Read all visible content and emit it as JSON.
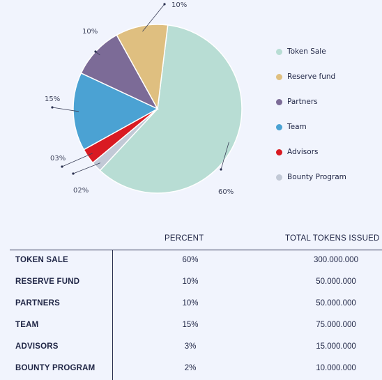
{
  "chart_data": {
    "type": "pie",
    "slices": [
      {
        "name": "Token Sale",
        "value": 60,
        "label": "60%",
        "color": "#b8ddd4"
      },
      {
        "name": "Bounty Program",
        "value": 2,
        "label": "02%",
        "color": "#c2c9d6"
      },
      {
        "name": "Advisors",
        "value": 3,
        "label": "03%",
        "color": "#d91a22"
      },
      {
        "name": "Team",
        "value": 15,
        "label": "15%",
        "color": "#4ba2d3"
      },
      {
        "name": "Partners",
        "value": 10,
        "label": "10%",
        "color": "#7c6b97"
      },
      {
        "name": "Reserve fund",
        "value": 10,
        "label": "10%",
        "color": "#dfbf80"
      }
    ],
    "legend": [
      "Token Sale",
      "Reserve fund",
      "Partners",
      "Team",
      "Advisors",
      "Bounty Program"
    ],
    "legend_position": "right"
  },
  "table": {
    "headers": {
      "percent": "PERCENT",
      "total": "TOTAL TOKENS ISSUED"
    },
    "rows": [
      {
        "name": "TOKEN SALE",
        "percent": "60%",
        "total": "300.000.000"
      },
      {
        "name": "RESERVE FUND",
        "percent": "10%",
        "total": "50.000.000"
      },
      {
        "name": "PARTNERS",
        "percent": "10%",
        "total": "50.000.000"
      },
      {
        "name": "TEAM",
        "percent": "15%",
        "total": "75.000.000"
      },
      {
        "name": "ADVISORS",
        "percent": "3%",
        "total": "15.000.000"
      },
      {
        "name": "BOUNTY PROGRAM",
        "percent": "2%",
        "total": "10.000.000"
      }
    ]
  }
}
